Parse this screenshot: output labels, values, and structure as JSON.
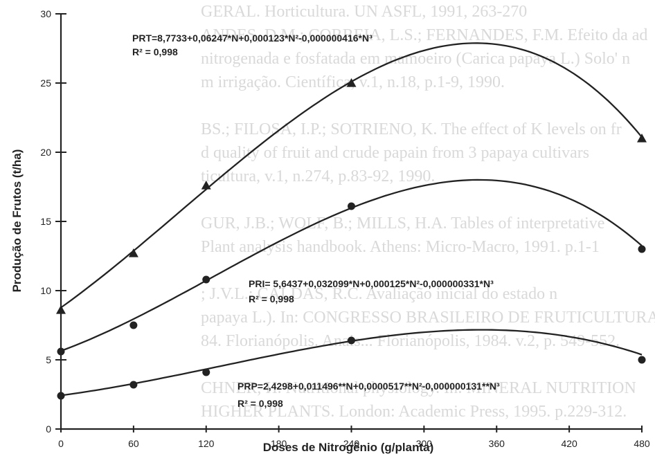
{
  "chart_data": {
    "type": "line",
    "xlabel": "Doses de Nitrogênio (g/planta)",
    "ylabel": "Produção de Frutos (t/ha)",
    "xlim": [
      0,
      480
    ],
    "ylim": [
      0,
      30
    ],
    "x_ticks": [
      "0",
      "60",
      "120",
      "180",
      "240",
      "300",
      "360",
      "420",
      "480"
    ],
    "y_ticks": [
      "0",
      "5",
      "10",
      "15",
      "20",
      "25",
      "30"
    ],
    "x": [
      0,
      60,
      120,
      240,
      480
    ],
    "grid": false,
    "series": [
      {
        "marker": "triangle",
        "values": [
          8.6,
          12.7,
          17.6,
          25.0,
          21.0
        ],
        "coefficients": [
          8.7733,
          0.06247,
          0.000123,
          -4.16e-07
        ],
        "equation": "PRT=8,7733+0,06247*N+0,000123*N²-0,000000416*N³",
        "r2": "R² = 0,998"
      },
      {
        "marker": "circle",
        "values": [
          5.6,
          7.5,
          10.8,
          16.1,
          13.0
        ],
        "coefficients": [
          5.6437,
          0.032099,
          0.000125,
          -3.31e-07
        ],
        "equation": "PRI= 5,6437+0,032099*N+0,000125*N²-0,000000331*N³",
        "r2": "R² = 0,998"
      },
      {
        "marker": "circle",
        "values": [
          2.4,
          3.2,
          4.1,
          6.4,
          5.0
        ],
        "coefficients": [
          2.4298,
          0.011496,
          5.17e-05,
          -1.31e-07
        ],
        "equation": "PRP=2,4298+0,011496**N+0,0000517**N²-0,000000131**N³",
        "r2": "R² = 0,998"
      }
    ]
  },
  "background_text": [
    "GERAL. Horticultura. UN ASFL, 1991, 263-270",
    "ANDES, D.M.; CORREIA, L.S.; FERNANDES, F.M. Efeito da ad",
    "nitrogenada e fosfatada em mamoeiro (Carica papaya L.) Solo' n",
    "m irrigação. Científica, v.1, n.18, p.1-9, 1990.",
    "",
    "BS.; FILOSA, I.P.; SOTRIENO, K. The effect of K levels on fr",
    "d quality of fruit and crude papain from 3 papaya cultivars",
    "ticultura, v.1, n.274, p.83-92, 1990.",
    "",
    "GUR, J.B.; WOLF, B.; MILLS, H.A. Tables of interpretative",
    "Plant analysis handbook. Athens: Micro-Macro, 1991. p.1-1",
    "",
    "; J.V.L.; CALDAS, R.C. Avaliação inicial do estado n",
    "papaya L.). In: CONGRESSO BRASILEIRO DE FRUTICULTURA",
    "84. Florianópolis. Anais... Florianópolis, 1984. v.2, p. 549-552.",
    "",
    "CHNER, H. Nutritional physiology. In: MINERAL NUTRITION",
    "HIGHER PLANTS. London: Academic Press, 1995. p.229-312."
  ]
}
